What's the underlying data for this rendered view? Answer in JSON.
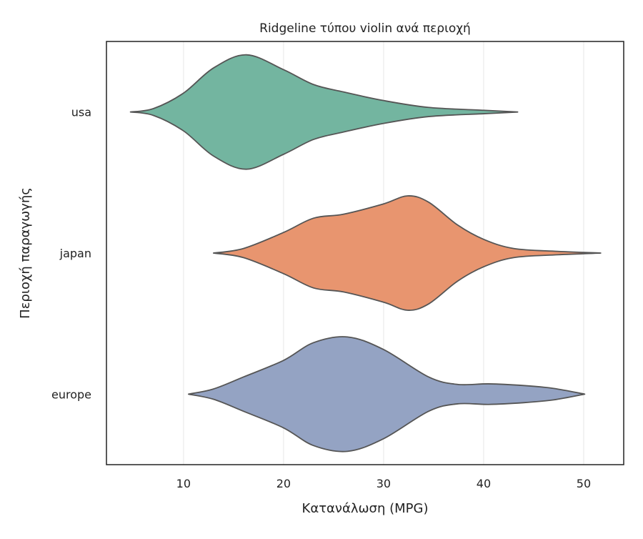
{
  "chart_data": {
    "type": "violin",
    "orientation": "horizontal",
    "title": "Ridgeline τύπου violin ανά περιοχή",
    "xlabel": "Κατανάλωση (MPG)",
    "ylabel": "Περιοχή παραγωγής",
    "xlim": [
      2.3,
      54
    ],
    "xticks": [
      10,
      20,
      30,
      40,
      50
    ],
    "grid": "vertical",
    "edge_color": "#555555",
    "categories": [
      "usa",
      "japan",
      "europe"
    ],
    "series": [
      {
        "name": "usa",
        "color": "#73b5a0",
        "density_profile": {
          "mpg": [
            4.7,
            7,
            10,
            13,
            16.3,
            20,
            23,
            26,
            30,
            34.5,
            40,
            43.4
          ],
          "relative_density": [
            0,
            0.06,
            0.33,
            0.77,
            1.0,
            0.74,
            0.48,
            0.35,
            0.2,
            0.08,
            0.03,
            0
          ]
        }
      },
      {
        "name": "japan",
        "color": "#e8956f",
        "density_profile": {
          "mpg": [
            13,
            16,
            20,
            23,
            26,
            30,
            32.4,
            34.5,
            37.4,
            40,
            43,
            47.4,
            51.7
          ],
          "relative_density": [
            0,
            0.08,
            0.36,
            0.61,
            0.68,
            0.86,
            1.0,
            0.89,
            0.49,
            0.24,
            0.08,
            0.03,
            0
          ]
        }
      },
      {
        "name": "europe",
        "color": "#94a3c3",
        "density_profile": {
          "mpg": [
            10.5,
            13,
            16,
            20,
            23,
            26.4,
            30,
            34.5,
            37.4,
            40.5,
            44,
            47,
            50.1
          ],
          "relative_density": [
            0,
            0.09,
            0.3,
            0.59,
            0.9,
            1.0,
            0.78,
            0.3,
            0.17,
            0.18,
            0.15,
            0.1,
            0
          ]
        }
      }
    ]
  }
}
